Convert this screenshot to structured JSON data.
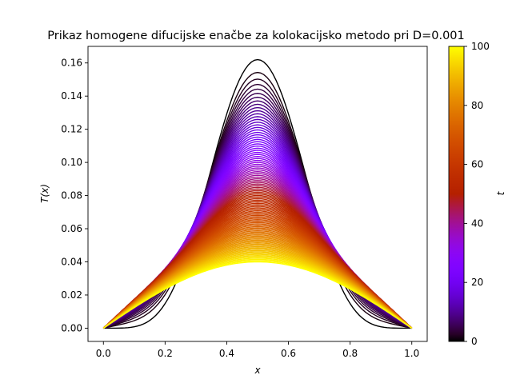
{
  "chart_data": {
    "type": "line",
    "title": "Prikaz homogene difucijske enačbe za kolokacijsko metodo pri D=0.001",
    "xlabel": "x",
    "ylabel": "T(x)",
    "xlim": [
      -0.05,
      1.05
    ],
    "ylim": [
      -0.008,
      0.17
    ],
    "xticks": [
      "0.0",
      "0.2",
      "0.4",
      "0.6",
      "0.8",
      "1.0"
    ],
    "yticks": [
      "0.00",
      "0.02",
      "0.04",
      "0.06",
      "0.08",
      "0.10",
      "0.12",
      "0.14",
      "0.16"
    ],
    "grid": false,
    "colormap": "gnuplot",
    "colorbar": {
      "label": "t",
      "range": [
        0,
        100
      ],
      "ticks": [
        "0",
        "20",
        "40",
        "60",
        "80",
        "100"
      ]
    },
    "curve_count": 100,
    "series_summary": {
      "description_t_range": [
        0,
        100
      ],
      "peak_T_at_t0": 0.162,
      "peak_T_at_t100": 0.04,
      "endpoint_T_at_x0": 0.0,
      "endpoint_T_at_x1": 0.0
    }
  }
}
